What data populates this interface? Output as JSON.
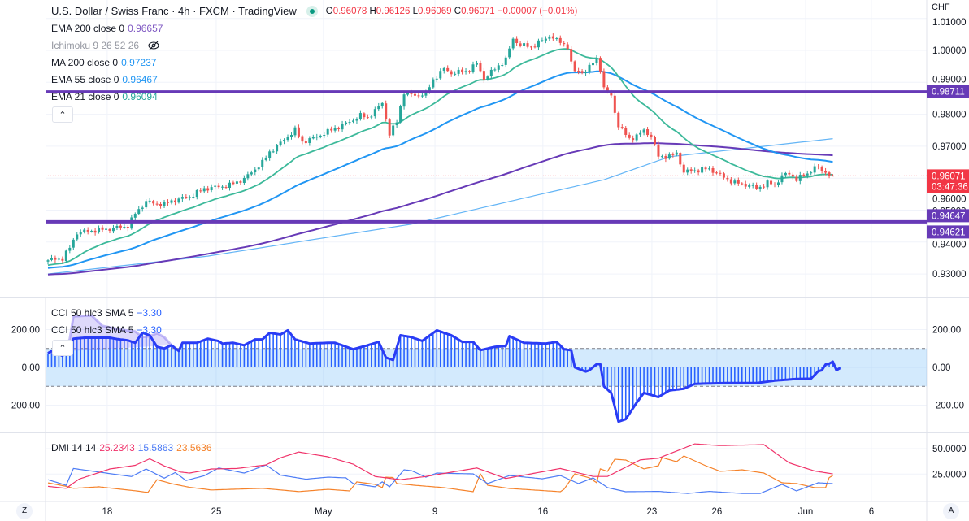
{
  "header": {
    "title": "U.S. Dollar / Swiss Franc · 4h · FXCM · TradingView",
    "o_label": "O",
    "o": "0.96078",
    "h_label": "H",
    "h": "0.96126",
    "l_label": "L",
    "l": "0.96069",
    "c_label": "C",
    "c": "0.96071",
    "change": "−0.00007 (−0.01%)"
  },
  "legend": [
    {
      "label": "EMA 200 close 0",
      "value": "0.96657",
      "color": "#673ab7"
    },
    {
      "label": "Ichimoku 9 26 52 26",
      "value": "",
      "color": "#9598a1",
      "hidden": true
    },
    {
      "label": "MA 200 close 0",
      "value": "0.97237",
      "color": "#2196f3"
    },
    {
      "label": "EMA 55 close 0",
      "value": "0.96467",
      "color": "#2196f3"
    },
    {
      "label": "EMA 21 close 0",
      "value": "0.96094",
      "color": "#26a69a"
    }
  ],
  "price_axis": {
    "currency": "CHF",
    "ticks": [
      "1.01000",
      "1.00000",
      "0.99000",
      "0.98000",
      "0.97000",
      "0.96000",
      "0.95000",
      "0.94000",
      "0.93000"
    ],
    "current_price": "0.96071",
    "countdown": "03:47:36",
    "hlines": [
      "0.98711",
      "0.94647",
      "0.94621"
    ]
  },
  "cci": {
    "legend": [
      {
        "label": "CCI 50 hlc3 SMA 5",
        "value": "−3.30"
      },
      {
        "label": "CCI 50 hlc3 SMA 5",
        "value": "−3.30"
      }
    ],
    "ticks": [
      "200.00",
      "0.00",
      "-200.00"
    ]
  },
  "dmi": {
    "label": "DMI 14 14",
    "adx": "25.2343",
    "plus_di": "15.5863",
    "minus_di": "23.5636",
    "ticks": [
      "50.0000",
      "25.0000"
    ]
  },
  "time_axis": {
    "labels": [
      {
        "text": "18",
        "bar": 16.3
      },
      {
        "text": "25",
        "bar": 46.3
      },
      {
        "text": "May",
        "bar": 75.8
      },
      {
        "text": "9",
        "bar": 106.5
      },
      {
        "text": "16",
        "bar": 136.2
      },
      {
        "text": "23",
        "bar": 166.2
      },
      {
        "text": "26",
        "bar": 184.1
      },
      {
        "text": "Jun",
        "bar": 208.5
      },
      {
        "text": "6",
        "bar": 226.6
      }
    ],
    "left_button": "Z",
    "right_button": "A"
  },
  "colors": {
    "up": "#26a69a",
    "down": "#ef5350",
    "ema21": "#3cb99a",
    "ema55": "#2196f3",
    "ma200": "#64b5f6",
    "ema200": "#673ab7",
    "hline": "#673ab7",
    "cci": "#2a3cf5",
    "adx": "#f0336a",
    "plus_di": "#4d7cf5",
    "minus_di": "#f5822a"
  },
  "chart_data": {
    "type": "candlestick",
    "title": "U.S. Dollar / Swiss Franc · 4h · FXCM",
    "timeframe": "4h",
    "bars": 217,
    "ylim": [
      0.925,
      1.012
    ],
    "last_candle": {
      "o": 0.96078,
      "h": 0.96126,
      "l": 0.96069,
      "c": 0.96071
    },
    "close_anchors": [
      [
        0,
        0.9343
      ],
      [
        4,
        0.9349
      ],
      [
        6,
        0.9382
      ],
      [
        8,
        0.943
      ],
      [
        10,
        0.9433
      ],
      [
        16,
        0.944
      ],
      [
        22,
        0.945
      ],
      [
        24,
        0.9489
      ],
      [
        27,
        0.9527
      ],
      [
        29,
        0.9522
      ],
      [
        32,
        0.9517
      ],
      [
        34,
        0.9529
      ],
      [
        39,
        0.9542
      ],
      [
        43,
        0.9567
      ],
      [
        47,
        0.9573
      ],
      [
        50,
        0.9578
      ],
      [
        54,
        0.9598
      ],
      [
        59,
        0.9649
      ],
      [
        61,
        0.9682
      ],
      [
        63,
        0.97
      ],
      [
        68,
        0.9751
      ],
      [
        70,
        0.9713
      ],
      [
        74,
        0.973
      ],
      [
        79,
        0.9756
      ],
      [
        83,
        0.9776
      ],
      [
        86,
        0.9796
      ],
      [
        88,
        0.9789
      ],
      [
        92,
        0.9835
      ],
      [
        94,
        0.9738
      ],
      [
        96,
        0.9776
      ],
      [
        98,
        0.987
      ],
      [
        99,
        0.9863
      ],
      [
        101,
        0.9858
      ],
      [
        104,
        0.9865
      ],
      [
        106,
        0.9908
      ],
      [
        109,
        0.9942
      ],
      [
        111,
        0.9929
      ],
      [
        115,
        0.9934
      ],
      [
        118,
        0.9959
      ],
      [
        120,
        0.9911
      ],
      [
        123,
        0.9942
      ],
      [
        126,
        0.9972
      ],
      [
        128,
        1.0036
      ],
      [
        130,
        1.0018
      ],
      [
        133,
        1.001
      ],
      [
        135,
        1.0025
      ],
      [
        137,
        1.0036
      ],
      [
        138,
        1.0048
      ],
      [
        140,
        1.0031
      ],
      [
        143,
        1.0013
      ],
      [
        144,
        0.9959
      ],
      [
        145,
        0.9934
      ],
      [
        148,
        0.9934
      ],
      [
        151,
        0.9975
      ],
      [
        152,
        0.9942
      ],
      [
        153,
        0.9878
      ],
      [
        154,
        0.987
      ],
      [
        155,
        0.9858
      ],
      [
        157,
        0.9761
      ],
      [
        160,
        0.9725
      ],
      [
        162,
        0.973
      ],
      [
        164,
        0.9751
      ],
      [
        166,
        0.973
      ],
      [
        168,
        0.9669
      ],
      [
        171,
        0.9667
      ],
      [
        173,
        0.9679
      ],
      [
        175,
        0.9618
      ],
      [
        177,
        0.9623
      ],
      [
        182,
        0.9629
      ],
      [
        184,
        0.9616
      ],
      [
        186,
        0.9603
      ],
      [
        189,
        0.9585
      ],
      [
        193,
        0.9578
      ],
      [
        195,
        0.9567
      ],
      [
        198,
        0.9585
      ],
      [
        200,
        0.9578
      ],
      [
        202,
        0.9608
      ],
      [
        204,
        0.9613
      ],
      [
        206,
        0.9598
      ],
      [
        209,
        0.9613
      ],
      [
        211,
        0.9636
      ],
      [
        213,
        0.9623
      ],
      [
        216,
        0.96071
      ]
    ],
    "ma200_anchors": [
      [
        0,
        0.93
      ],
      [
        44,
        0.9356
      ],
      [
        100,
        0.9456
      ],
      [
        130,
        0.9535
      ],
      [
        153,
        0.9595
      ],
      [
        171,
        0.9667
      ],
      [
        216,
        0.97237
      ]
    ],
    "ema_seeds": {
      "ema21": 0.9326,
      "ema55": 0.9318,
      "ema200": 0.9298
    },
    "hlines": [
      0.98711,
      0.94647,
      0.94621
    ],
    "cci": {
      "ylim": [
        -330,
        330
      ],
      "bands": [
        -100,
        100
      ],
      "anchors": [
        [
          0,
          74
        ],
        [
          1,
          87
        ],
        [
          4,
          61
        ],
        [
          7,
          152
        ],
        [
          10,
          157
        ],
        [
          17,
          157
        ],
        [
          19,
          150
        ],
        [
          22,
          143
        ],
        [
          24,
          130
        ],
        [
          26,
          183
        ],
        [
          28,
          170
        ],
        [
          30,
          109
        ],
        [
          32,
          100
        ],
        [
          34,
          117
        ],
        [
          36,
          87
        ],
        [
          37,
          130
        ],
        [
          41,
          130
        ],
        [
          44,
          152
        ],
        [
          47,
          139
        ],
        [
          48,
          126
        ],
        [
          51,
          130
        ],
        [
          54,
          117
        ],
        [
          57,
          148
        ],
        [
          59,
          148
        ],
        [
          61,
          183
        ],
        [
          64,
          174
        ],
        [
          66,
          196
        ],
        [
          68,
          148
        ],
        [
          72,
          126
        ],
        [
          77,
          130
        ],
        [
          79,
          130
        ],
        [
          84,
          96
        ],
        [
          88,
          117
        ],
        [
          91,
          135
        ],
        [
          93,
          52
        ],
        [
          95,
          39
        ],
        [
          97,
          170
        ],
        [
          100,
          160
        ],
        [
          103,
          140
        ],
        [
          107,
          196
        ],
        [
          111,
          170
        ],
        [
          114,
          135
        ],
        [
          117,
          135
        ],
        [
          119,
          91
        ],
        [
          123,
          109
        ],
        [
          126,
          113
        ],
        [
          127,
          165
        ],
        [
          131,
          130
        ],
        [
          137,
          126
        ],
        [
          140,
          135
        ],
        [
          142,
          96
        ],
        [
          144,
          91
        ],
        [
          145,
          0
        ],
        [
          148,
          -22
        ],
        [
          149,
          -15
        ],
        [
          151,
          17
        ],
        [
          152,
          17
        ],
        [
          153,
          -100
        ],
        [
          155,
          -135
        ],
        [
          156,
          -209
        ],
        [
          157,
          -287
        ],
        [
          159,
          -274
        ],
        [
          162,
          -187
        ],
        [
          164,
          -135
        ],
        [
          168,
          -157
        ],
        [
          171,
          -122
        ],
        [
          175,
          -113
        ],
        [
          178,
          -87
        ],
        [
          186,
          -83
        ],
        [
          195,
          -83
        ],
        [
          200,
          -70
        ],
        [
          206,
          -61
        ],
        [
          210,
          -60
        ],
        [
          212,
          -20
        ],
        [
          213,
          -15
        ],
        [
          214,
          15
        ],
        [
          215,
          20
        ],
        [
          216,
          30
        ],
        [
          217,
          -15
        ],
        [
          218,
          -3.3
        ]
      ],
      "sma_overlay_anchors": [
        [
          0,
          80
        ],
        [
          4,
          65
        ],
        [
          6,
          150
        ],
        [
          7,
          270
        ],
        [
          12,
          275
        ],
        [
          15,
          220
        ],
        [
          20,
          200
        ],
        [
          24,
          190
        ],
        [
          26,
          160
        ],
        [
          28,
          165
        ],
        [
          30,
          180
        ],
        [
          32,
          160
        ],
        [
          34,
          117
        ]
      ]
    },
    "dmi": {
      "ylim": [
        0,
        65
      ],
      "adx": [
        [
          0,
          13
        ],
        [
          5,
          11
        ],
        [
          8.5,
          20
        ],
        [
          17,
          30
        ],
        [
          24,
          33.6
        ],
        [
          28,
          40
        ],
        [
          32,
          33
        ],
        [
          36.5,
          27
        ],
        [
          39,
          26
        ],
        [
          45,
          30
        ],
        [
          52,
          30.5
        ],
        [
          60,
          34
        ],
        [
          64,
          41
        ],
        [
          69,
          46.7
        ],
        [
          77,
          42
        ],
        [
          84,
          34.8
        ],
        [
          90,
          22.7
        ],
        [
          97,
          19.5
        ],
        [
          104,
          22.7
        ],
        [
          118,
          31
        ],
        [
          126,
          20.7
        ],
        [
          141,
          30.5
        ],
        [
          150,
          22.7
        ],
        [
          154,
          22.7
        ],
        [
          163,
          39
        ],
        [
          168,
          40.6
        ],
        [
          178,
          54.7
        ],
        [
          185,
          53
        ],
        [
          197,
          54
        ],
        [
          204,
          36
        ],
        [
          211,
          28
        ],
        [
          216,
          25.2343
        ]
      ],
      "plus_di": [
        [
          0,
          19.5
        ],
        [
          5,
          14
        ],
        [
          7,
          30.5
        ],
        [
          12,
          28
        ],
        [
          16,
          26
        ],
        [
          23,
          22.6
        ],
        [
          27,
          30
        ],
        [
          32,
          21
        ],
        [
          35,
          26.5
        ],
        [
          38,
          18.7
        ],
        [
          43,
          23.4
        ],
        [
          47,
          31
        ],
        [
          54,
          26
        ],
        [
          60,
          34
        ],
        [
          64,
          24
        ],
        [
          71,
          20
        ],
        [
          77,
          22
        ],
        [
          82,
          21.3
        ],
        [
          84,
          15.7
        ],
        [
          90,
          12.5
        ],
        [
          92,
          17.3
        ],
        [
          94,
          12.5
        ],
        [
          98,
          29.2
        ],
        [
          100,
          28.4
        ],
        [
          104,
          22
        ],
        [
          107,
          26
        ],
        [
          117,
          25.2
        ],
        [
          121,
          15.7
        ],
        [
          127,
          23.6
        ],
        [
          136,
          20.4
        ],
        [
          141,
          23.6
        ],
        [
          146,
          15.7
        ],
        [
          150,
          21.3
        ],
        [
          154,
          11.7
        ],
        [
          159,
          7.7
        ],
        [
          168,
          8
        ],
        [
          176,
          6
        ],
        [
          182,
          8
        ],
        [
          191,
          6
        ],
        [
          196,
          6
        ],
        [
          202,
          14.9
        ],
        [
          206,
          8.5
        ],
        [
          212,
          16.5
        ],
        [
          216,
          15.5863
        ]
      ],
      "minus_di": [
        [
          0,
          16.4
        ],
        [
          5,
          13
        ],
        [
          7,
          11
        ],
        [
          14,
          12.5
        ],
        [
          24,
          8.6
        ],
        [
          27.5,
          7
        ],
        [
          30,
          19.5
        ],
        [
          34,
          15.6
        ],
        [
          39,
          12
        ],
        [
          45,
          9.4
        ],
        [
          59,
          11
        ],
        [
          69,
          7.8
        ],
        [
          77,
          10
        ],
        [
          83,
          8.5
        ],
        [
          85,
          17.3
        ],
        [
          90,
          14.9
        ],
        [
          92,
          11.7
        ],
        [
          93,
          22
        ],
        [
          95,
          21.6
        ],
        [
          96,
          15.7
        ],
        [
          101,
          14
        ],
        [
          109,
          11.7
        ],
        [
          117,
          7.7
        ],
        [
          119,
          25.2
        ],
        [
          121,
          14
        ],
        [
          127,
          10.9
        ],
        [
          141,
          7.7
        ],
        [
          142,
          10
        ],
        [
          145,
          25.2
        ],
        [
          149,
          21.3
        ],
        [
          151,
          16.5
        ],
        [
          152,
          30.1
        ],
        [
          154,
          27.7
        ],
        [
          156,
          39.6
        ],
        [
          159,
          38.8
        ],
        [
          164,
          30.1
        ],
        [
          168,
          33.2
        ],
        [
          169,
          41.2
        ],
        [
          173,
          37.2
        ],
        [
          175,
          42.8
        ],
        [
          181,
          33.2
        ],
        [
          185,
          27.7
        ],
        [
          191,
          29.2
        ],
        [
          197,
          26
        ],
        [
          202,
          16.5
        ],
        [
          206,
          15.7
        ],
        [
          211,
          11.7
        ],
        [
          214,
          11.7
        ],
        [
          215,
          21.6
        ],
        [
          216,
          23.5636
        ]
      ]
    }
  }
}
